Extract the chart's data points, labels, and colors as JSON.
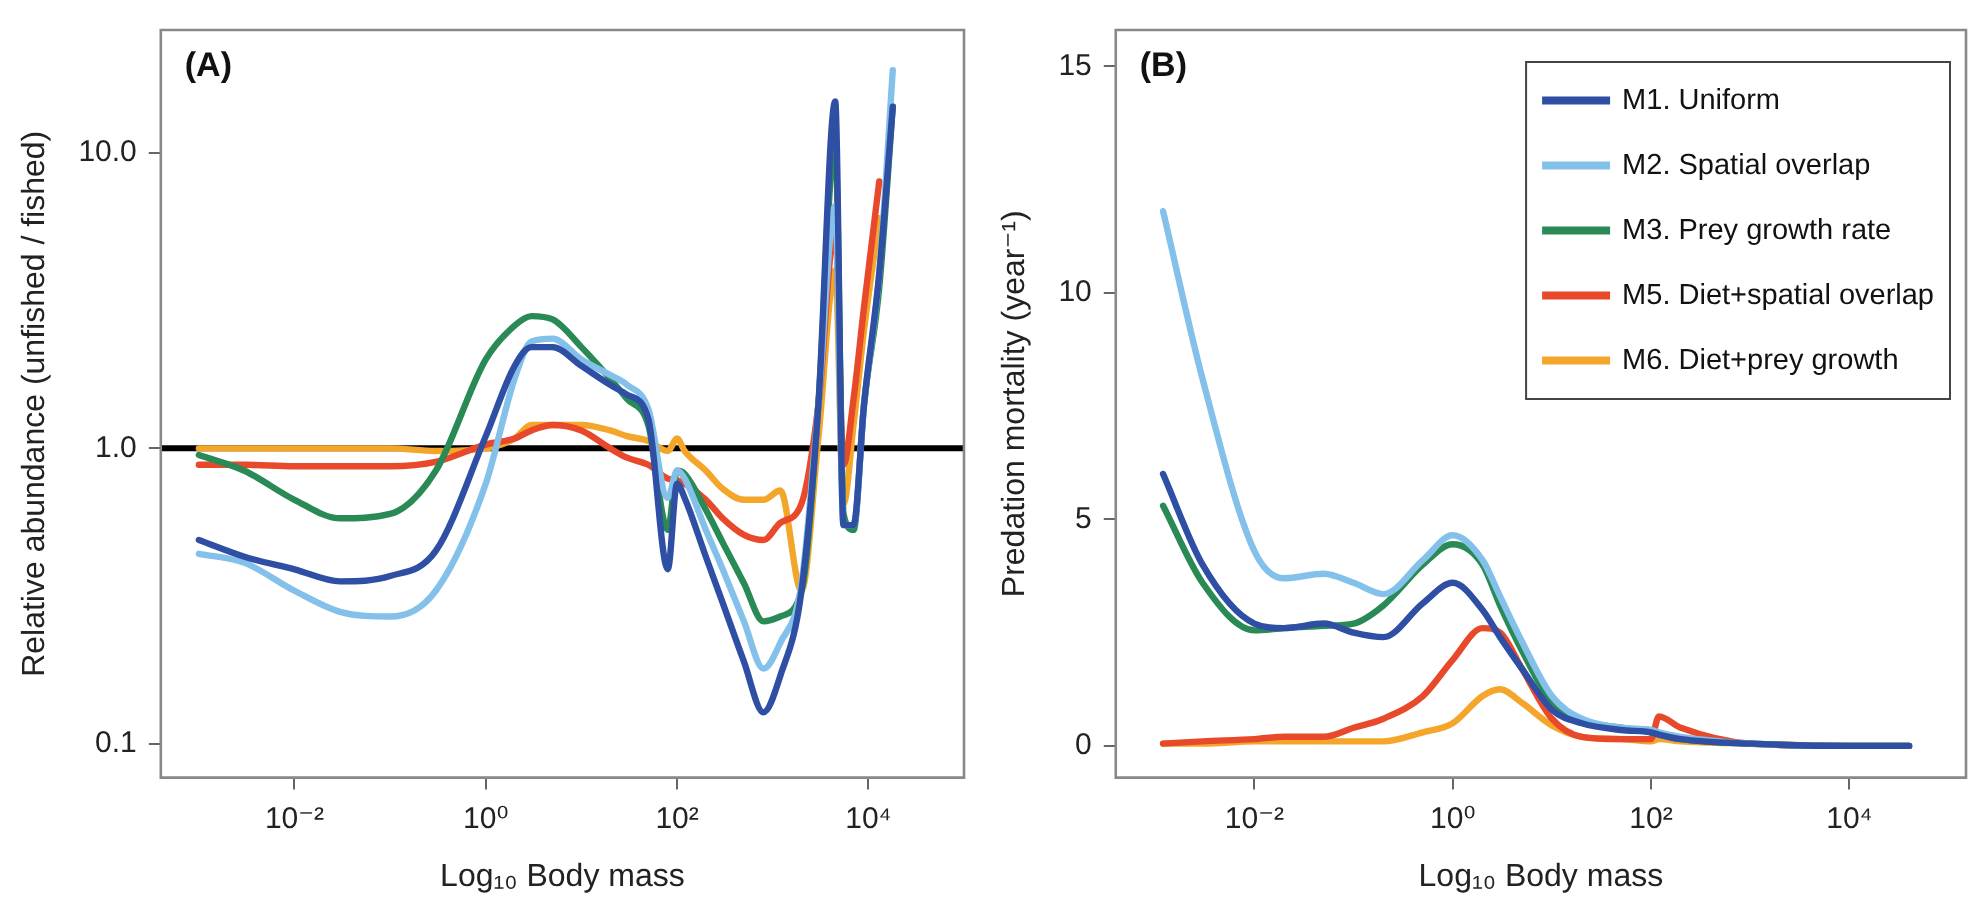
{
  "chart_data": [
    {
      "type": "line",
      "xlabel": "Log₁₀ Body mass",
      "ylabel": "Relative abundance (unfished / fished)",
      "annotations": [
        "(A)"
      ],
      "log": "xy",
      "grid": false,
      "legend": false,
      "xlim": [
        0.0004,
        100000
      ],
      "xticks": [
        {
          "value": 0.01,
          "label": "10⁻²"
        },
        {
          "value": 1,
          "label": "10⁰"
        },
        {
          "value": 100,
          "label": "10²"
        },
        {
          "value": 10000,
          "label": "10⁴"
        }
      ],
      "ylim": [
        0.077,
        26
      ],
      "yticks": [
        0.1,
        {
          "value": 1,
          "label": "1.0"
        },
        {
          "value": 10,
          "label": "10.0"
        }
      ],
      "ref_lines": [
        {
          "axis": "y",
          "value": 1,
          "color": "#000000"
        }
      ],
      "x": [
        0.001,
        0.003,
        0.01,
        0.03,
        0.1,
        0.3,
        1,
        2,
        3,
        5,
        10,
        20,
        30,
        50,
        80,
        100,
        120,
        200,
        300,
        500,
        800,
        1200,
        2000,
        3000,
        4500,
        5500,
        7000,
        9000,
        13000,
        18000
      ],
      "series": [
        {
          "color": "#2e4fa3",
          "values": [
            0.49,
            0.43,
            0.39,
            0.355,
            0.37,
            0.45,
            1.1,
            1.9,
            2.2,
            2.2,
            1.9,
            1.64,
            1.52,
            1.26,
            0.39,
            0.76,
            0.68,
            0.43,
            0.3,
            0.19,
            0.128,
            0.17,
            0.33,
            1.4,
            14.9,
            0.55,
            0.55,
            1.4,
            3.9,
            14.3
          ]
        },
        {
          "color": "#84c1ea",
          "values": [
            0.44,
            0.41,
            0.33,
            0.28,
            0.27,
            0.33,
            0.76,
            1.72,
            2.3,
            2.35,
            2.0,
            1.77,
            1.64,
            1.36,
            0.68,
            0.84,
            0.79,
            0.53,
            0.39,
            0.26,
            0.18,
            0.22,
            0.35,
            1.4,
            6.6,
            0.55,
            0.55,
            1.4,
            3.9,
            19
          ]
        },
        {
          "color": "#2a8a55",
          "values": [
            0.95,
            0.84,
            0.67,
            0.58,
            0.6,
            0.84,
            2.0,
            2.6,
            2.8,
            2.73,
            2.2,
            1.72,
            1.47,
            1.2,
            0.53,
            0.84,
            0.82,
            0.62,
            0.48,
            0.35,
            0.26,
            0.27,
            0.33,
            1.4,
            11,
            0.6,
            0.53,
            1.4,
            3.5,
            14.3
          ]
        },
        {
          "color": "#e8492a",
          "values": [
            0.88,
            0.88,
            0.87,
            0.87,
            0.87,
            0.9,
            1.03,
            1.08,
            1.15,
            1.2,
            1.15,
            1.0,
            0.93,
            0.88,
            0.79,
            0.78,
            0.76,
            0.67,
            0.58,
            0.51,
            0.49,
            0.56,
            0.65,
            1.4,
            5.6,
            0.88,
            1.47,
            3.0,
            8,
            null
          ]
        },
        {
          "color": "#f4a62a",
          "values": [
            1.0,
            1.0,
            1.0,
            1.0,
            1.0,
            0.98,
            1.0,
            1.08,
            1.2,
            1.2,
            1.2,
            1.15,
            1.1,
            1.06,
            0.98,
            1.08,
            0.98,
            0.84,
            0.73,
            0.67,
            0.67,
            0.72,
            0.33,
            1.08,
            4,
            0.65,
            1.2,
            2.5,
            6,
            null
          ]
        }
      ]
    },
    {
      "type": "line",
      "xlabel": "Log₁₀ Body mass",
      "ylabel": "Predation mortality (year⁻¹)",
      "annotations": [
        "(B)"
      ],
      "log": "x",
      "grid": false,
      "legend": "top right",
      "xlim": [
        0.0004,
        150000
      ],
      "xticks": [
        {
          "value": 0.01,
          "label": "10⁻²"
        },
        {
          "value": 1,
          "label": "10⁰"
        },
        {
          "value": 100,
          "label": "10²"
        },
        {
          "value": 10000,
          "label": "10⁴"
        }
      ],
      "ylim": [
        -0.7,
        15.8
      ],
      "yticks": [
        0,
        5,
        10,
        15
      ],
      "x": [
        0.0012,
        0.003,
        0.01,
        0.02,
        0.05,
        0.1,
        0.2,
        0.5,
        1,
        2,
        3,
        5,
        10,
        20,
        50,
        100,
        120,
        200,
        1000,
        10000,
        40000
      ],
      "series": [
        {
          "name": "M1. Uniform",
          "color": "#2e4fa3",
          "values": [
            6.0,
            4.0,
            2.7,
            2.6,
            2.7,
            2.5,
            2.4,
            3.15,
            3.6,
            3.0,
            2.4,
            1.7,
            0.8,
            0.5,
            0.35,
            0.3,
            0.25,
            0.15,
            0.05,
            0,
            0
          ]
        },
        {
          "name": "M2. Spatial overlap",
          "color": "#84c1ea",
          "values": [
            11.8,
            8.1,
            4.3,
            3.7,
            3.8,
            3.6,
            3.35,
            4.1,
            4.65,
            4.1,
            3.3,
            2.3,
            1.1,
            0.6,
            0.4,
            0.35,
            0.3,
            0.2,
            0.05,
            0,
            0
          ]
        },
        {
          "name": "M3. Prey growth rate",
          "color": "#2a8a55",
          "values": [
            5.3,
            3.6,
            2.55,
            2.6,
            2.65,
            2.7,
            3.1,
            4.0,
            4.45,
            4.0,
            3.1,
            2.1,
            0.95,
            0.55,
            0.4,
            0.3,
            0.25,
            0.15,
            0.05,
            0,
            0
          ]
        },
        {
          "name": "M5. Diet+spatial overlap",
          "color": "#e8492a",
          "values": [
            0.05,
            0.1,
            0.15,
            0.2,
            0.2,
            0.4,
            0.6,
            1.1,
            1.9,
            2.6,
            2.5,
            1.7,
            0.6,
            0.2,
            0.15,
            0.15,
            0.65,
            0.4,
            0.05,
            0,
            0
          ]
        },
        {
          "name": "M6. Diet+prey growth",
          "color": "#f4a62a",
          "values": [
            0.05,
            0.05,
            0.1,
            0.1,
            0.1,
            0.1,
            0.1,
            0.3,
            0.5,
            1.1,
            1.25,
            0.95,
            0.45,
            0.2,
            0.15,
            0.1,
            0.15,
            0.1,
            0.05,
            0,
            0
          ]
        }
      ]
    }
  ]
}
